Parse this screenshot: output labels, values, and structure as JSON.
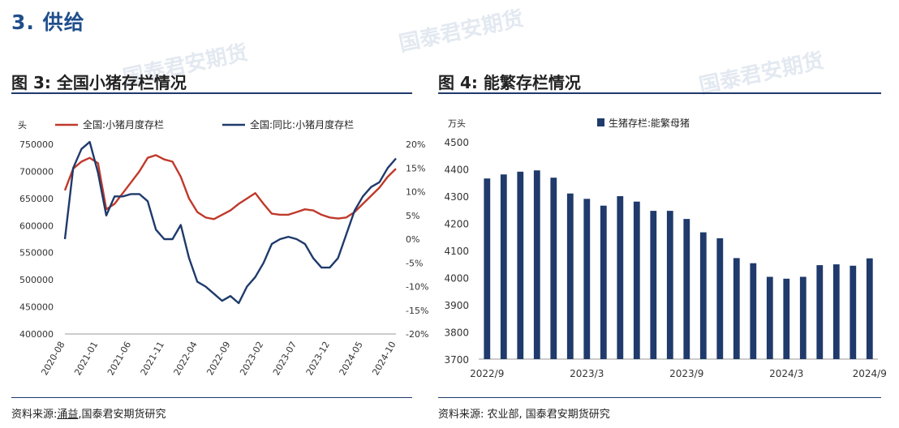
{
  "section_title": "3. 供给",
  "watermark": "国泰君安期货",
  "fig3": {
    "title": "图 3: 全国小猪存栏情况",
    "source_prefix": "资料来源:",
    "source_linked": "涌益",
    "source_suffix": ",国泰君安期货研究",
    "chart_data": {
      "type": "line",
      "unit_left": "头",
      "series": [
        {
          "name": "全国:小猪月度存栏",
          "axis": "left",
          "color": "#c0392b",
          "values": [
            665000,
            705000,
            718000,
            725000,
            715000,
            630000,
            640000,
            660000,
            680000,
            700000,
            725000,
            730000,
            722000,
            718000,
            690000,
            650000,
            625000,
            615000,
            612000,
            620000,
            628000,
            640000,
            650000,
            660000,
            640000,
            622000,
            620000,
            620000,
            625000,
            630000,
            628000,
            620000,
            615000,
            613000,
            615000,
            625000,
            640000,
            655000,
            670000,
            690000,
            705000
          ]
        },
        {
          "name": "全国:同比:小猪月度存栏",
          "axis": "right",
          "color": "#1f3a6b",
          "values": [
            0,
            15,
            19,
            20.5,
            14,
            5,
            9,
            9,
            9.5,
            9.5,
            8,
            2,
            0,
            0,
            3,
            -4,
            -9,
            -10,
            -11.5,
            -13,
            -12,
            -13.5,
            -10,
            -8,
            -5,
            -1,
            0,
            0.5,
            0,
            -1,
            -4,
            -6,
            -6,
            -4,
            1,
            6,
            9,
            11,
            12,
            15,
            17
          ]
        }
      ],
      "x_tick_labels": [
        "2020-08",
        "2021-01",
        "2021-06",
        "2021-11",
        "2022-04",
        "2022-09",
        "2023-02",
        "2023-07",
        "2023-12",
        "2024-05",
        "2024-10"
      ],
      "y_left_ticks": [
        "750000",
        "700000",
        "650000",
        "600000",
        "550000",
        "500000",
        "450000",
        "400000"
      ],
      "y_left_range": [
        400000,
        750000
      ],
      "y_right_ticks": [
        "20%",
        "15%",
        "10%",
        "5%",
        "0%",
        "-5%",
        "-10%",
        "-15%",
        "-20%"
      ],
      "y_right_range": [
        -20,
        20
      ]
    }
  },
  "fig4": {
    "title": "图 4: 能繁存栏情况",
    "source": "资料来源: 农业部, 国泰君安期货研究",
    "chart_data": {
      "type": "bar",
      "unit": "万头",
      "legend": "生猪存栏:能繁母猪",
      "color": "#1f3a6b",
      "values": [
        4365,
        4380,
        4390,
        4395,
        4368,
        4310,
        4290,
        4265,
        4300,
        4280,
        4246,
        4246,
        4216,
        4167,
        4145,
        4072,
        4053,
        4003,
        3996,
        4003,
        4046,
        4049,
        4044,
        4071
      ],
      "x_tick_labels": [
        "2022/9",
        "2023/3",
        "2023/9",
        "2024/3",
        "2024/9"
      ],
      "x_tick_index": [
        0,
        6,
        12,
        18,
        23
      ],
      "y_ticks": [
        "4500",
        "4400",
        "4300",
        "4200",
        "4100",
        "4000",
        "3900",
        "3800",
        "3700"
      ],
      "y_range": [
        3700,
        4500
      ]
    }
  }
}
